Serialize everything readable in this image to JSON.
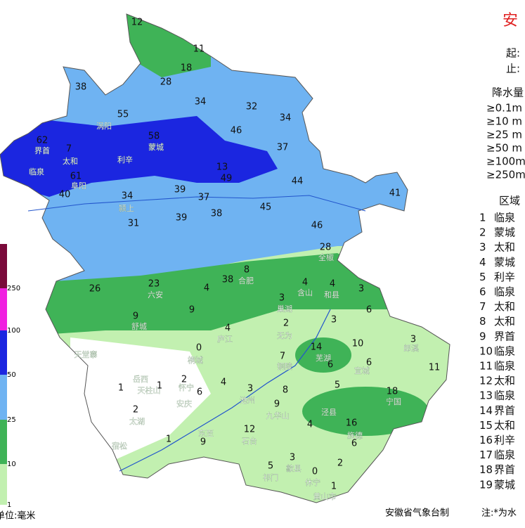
{
  "title": "安",
  "start_label": "起:",
  "end_label": "止:",
  "legend": {
    "title": "降水量",
    "items": [
      "≥0.1m",
      "≥10 m",
      "≥25 m",
      "≥50 m",
      "≥100m",
      "≥250m"
    ]
  },
  "regions": {
    "title": "区域",
    "rows": [
      {
        "rank": 1,
        "name": "临泉"
      },
      {
        "rank": 2,
        "name": "蒙城"
      },
      {
        "rank": 3,
        "name": "太和"
      },
      {
        "rank": 4,
        "name": "蒙城"
      },
      {
        "rank": 5,
        "name": "利辛"
      },
      {
        "rank": 6,
        "name": "临泉"
      },
      {
        "rank": 7,
        "name": "太和"
      },
      {
        "rank": 8,
        "name": "太和"
      },
      {
        "rank": 9,
        "name": "界首"
      },
      {
        "rank": 10,
        "name": "临泉"
      },
      {
        "rank": 11,
        "name": "临泉"
      },
      {
        "rank": 12,
        "name": "太和"
      },
      {
        "rank": 13,
        "name": "临泉"
      },
      {
        "rank": 14,
        "name": "界首"
      },
      {
        "rank": 15,
        "name": "太和"
      },
      {
        "rank": 16,
        "name": "利辛"
      },
      {
        "rank": 17,
        "name": "临泉"
      },
      {
        "rank": 18,
        "name": "界首"
      },
      {
        "rank": 19,
        "name": "蒙城"
      }
    ]
  },
  "colorbar": {
    "labels": [
      250,
      100,
      50,
      25,
      10,
      1
    ]
  },
  "unit": "单位:毫米",
  "credit": "安徽省气象台制",
  "note": "注:*为水",
  "places": [
    "涡阳",
    "蒙城",
    "利辛",
    "临泉",
    "界首",
    "太和",
    "阜阳",
    "颍上",
    "六安",
    "舒城",
    "合肥",
    "庐江",
    "无为",
    "桐城",
    "岳西",
    "天柱山",
    "太湖",
    "宿松",
    "怀宁",
    "安庆",
    "池州",
    "东至",
    "石台",
    "九华山",
    "歙县",
    "休宁",
    "黄山市",
    "祁门",
    "宣城",
    "宁国",
    "郎溪",
    "芜湖",
    "铜陵",
    "含山",
    "和县",
    "巢湖",
    "天堂寨",
    "全椒",
    "泾县",
    "旌德"
  ],
  "stations": [
    12,
    11,
    18,
    28,
    38,
    34,
    32,
    34,
    55,
    46,
    62,
    58,
    37,
    7,
    13,
    49,
    44,
    61,
    40,
    34,
    39,
    37,
    41,
    45,
    39,
    38,
    31,
    46,
    28,
    8,
    38,
    26,
    23,
    4,
    4,
    4,
    3,
    6,
    3,
    9,
    9,
    4,
    2,
    3,
    14,
    10,
    3,
    0,
    6,
    6,
    11,
    2,
    4,
    1,
    1,
    6,
    3,
    8,
    5,
    18,
    2,
    9,
    7,
    12,
    9,
    1,
    4,
    16,
    6,
    3,
    5,
    0,
    2,
    1
  ]
}
